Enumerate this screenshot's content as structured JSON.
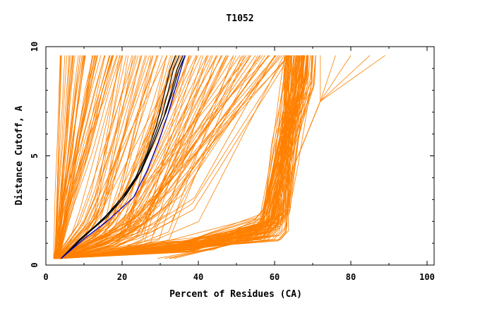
{
  "chart_data": {
    "type": "line",
    "title": "T1052",
    "xlabel": "Percent of Residues (CA)",
    "ylabel": "Distance Cutoff, A",
    "xlim": [
      0,
      102
    ],
    "ylim": [
      0,
      10
    ],
    "x_ticks": [
      "0",
      "20",
      "40",
      "60",
      "80",
      "100"
    ],
    "y_ticks": [
      "0",
      "5",
      "10"
    ],
    "x_tick_values": [
      0,
      20,
      40,
      60,
      80,
      100
    ],
    "y_tick_values": [
      0,
      5,
      10
    ],
    "grid": false,
    "legend": "none",
    "colors": {
      "bundle": "#ff8000",
      "highlight": "#000000",
      "blue": "#0000cc"
    },
    "note_on_data": "Orange bundle: cumulative distance-cutoff curves for many models (values estimated from the picture). Black: a few highlighted models; blue: one highlighted model.",
    "series_groups": {
      "orange_fast_rise_ends_x": [
        3,
        4,
        5,
        6,
        7,
        8,
        9,
        10,
        11,
        12,
        13,
        14,
        15,
        16,
        17,
        18
      ],
      "orange_mid_ends_x": [
        19,
        21,
        23,
        25,
        27,
        29,
        31,
        33,
        35,
        37,
        39,
        41,
        43,
        45,
        47,
        49,
        51,
        53,
        55,
        57,
        59,
        61,
        63
      ],
      "orange_main_knee_x": [
        56,
        57,
        58,
        59,
        60,
        61,
        62,
        63
      ],
      "orange_main_ends_x": [
        62,
        63,
        64,
        65,
        66,
        67,
        68,
        69,
        70
      ],
      "orange_far_ends_x": [
        72,
        76,
        80,
        85,
        89
      ],
      "black_curves": [
        {
          "x": [
            4,
            10,
            16,
            21,
            25,
            28,
            31,
            33,
            34.5,
            36
          ],
          "y": [
            0.3,
            1.3,
            2.2,
            3.2,
            4.3,
            5.5,
            6.8,
            8.0,
            9.0,
            9.6
          ]
        },
        {
          "x": [
            4,
            10,
            15,
            20,
            24,
            27,
            30,
            32,
            33.5,
            35
          ],
          "y": [
            0.3,
            1.3,
            2.1,
            3.0,
            4.0,
            5.2,
            6.6,
            7.9,
            9.0,
            9.6
          ]
        },
        {
          "x": [
            4,
            9,
            15,
            20,
            23.5,
            26.5,
            29,
            31,
            32.5,
            34
          ],
          "y": [
            0.3,
            1.2,
            2.1,
            3.1,
            4.0,
            5.1,
            6.4,
            7.8,
            8.9,
            9.6
          ]
        },
        {
          "x": [
            4,
            10,
            16,
            21.5,
            25.5,
            28.5,
            31.5,
            33.5,
            35,
            36.5
          ],
          "y": [
            0.3,
            1.3,
            2.3,
            3.4,
            4.5,
            5.7,
            7.0,
            8.1,
            9.0,
            9.6
          ]
        }
      ],
      "blue_curve": {
        "x": [
          4,
          10,
          16,
          23,
          26.5,
          29.5,
          32,
          34,
          35.5,
          36.5
        ],
        "y": [
          0.3,
          1.2,
          2.0,
          3.1,
          4.3,
          5.6,
          6.9,
          8.1,
          9.0,
          9.6
        ]
      }
    }
  }
}
